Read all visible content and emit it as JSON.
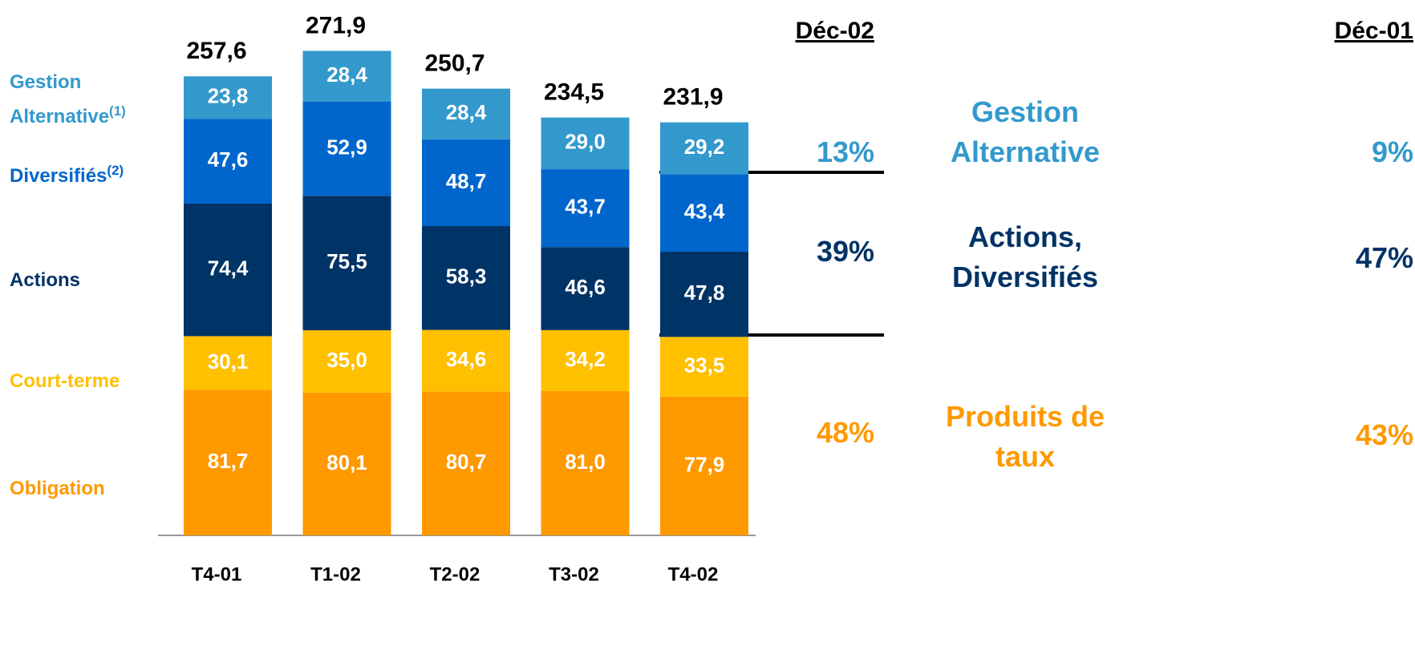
{
  "chart_data": {
    "type": "stacked_bar",
    "categories": [
      "T4-01",
      "T1-02",
      "T2-02",
      "T3-02",
      "T4-02"
    ],
    "ylim": [
      0,
      300
    ],
    "series": [
      {
        "name": "Obligation",
        "color": "#ff9900",
        "values": [
          81.7,
          80.1,
          80.7,
          81.0,
          77.9
        ],
        "value_labels": [
          "81,7",
          "80,1",
          "80,7",
          "81,0",
          "77,9"
        ]
      },
      {
        "name": "Court-terme",
        "color": "#ffc000",
        "values": [
          30.1,
          35.0,
          34.6,
          34.2,
          33.5
        ],
        "value_labels": [
          "30,1",
          "35,0",
          "34,6",
          "34,2",
          "33,5"
        ]
      },
      {
        "name": "Actions",
        "color": "#003366",
        "values": [
          74.4,
          75.5,
          58.3,
          46.6,
          47.8
        ],
        "value_labels": [
          "74,4",
          "75,5",
          "58,3",
          "46,6",
          "47,8"
        ]
      },
      {
        "name": "Diversifiés",
        "footnote": "(2)",
        "color": "#0066cc",
        "values": [
          47.6,
          52.9,
          48.7,
          43.7,
          43.4
        ],
        "value_labels": [
          "47,6",
          "52,9",
          "48,7",
          "43,7",
          "43,4"
        ]
      },
      {
        "name": "Gestion Alternative",
        "footnote": "(1)",
        "color": "#3399cc",
        "values": [
          23.8,
          28.4,
          28.4,
          29.0,
          29.2
        ],
        "value_labels": [
          "23,8",
          "28,4",
          "28,4",
          "29,0",
          "29,2"
        ]
      }
    ],
    "totals": {
      "values": [
        257.6,
        271.9,
        250.7,
        234.5,
        231.9
      ],
      "value_labels": [
        "257,6",
        "271,9",
        "250,7",
        "234,5",
        "231,9"
      ]
    }
  },
  "panel": {
    "headers": [
      "Déc-02",
      "Déc-01"
    ],
    "rows": [
      {
        "label": "Gestion Alternative",
        "color": "#3399cc",
        "values": [
          13,
          9
        ],
        "value_labels": [
          "13%",
          "9%"
        ]
      },
      {
        "label": "Actions, Diversifiés",
        "color": "#003366",
        "values": [
          39,
          47
        ],
        "value_labels": [
          "39%",
          "47%"
        ]
      },
      {
        "label": "Produits de taux",
        "color": "#ff9900",
        "values": [
          48,
          43
        ],
        "value_labels": [
          "48%",
          "43%"
        ]
      }
    ]
  }
}
